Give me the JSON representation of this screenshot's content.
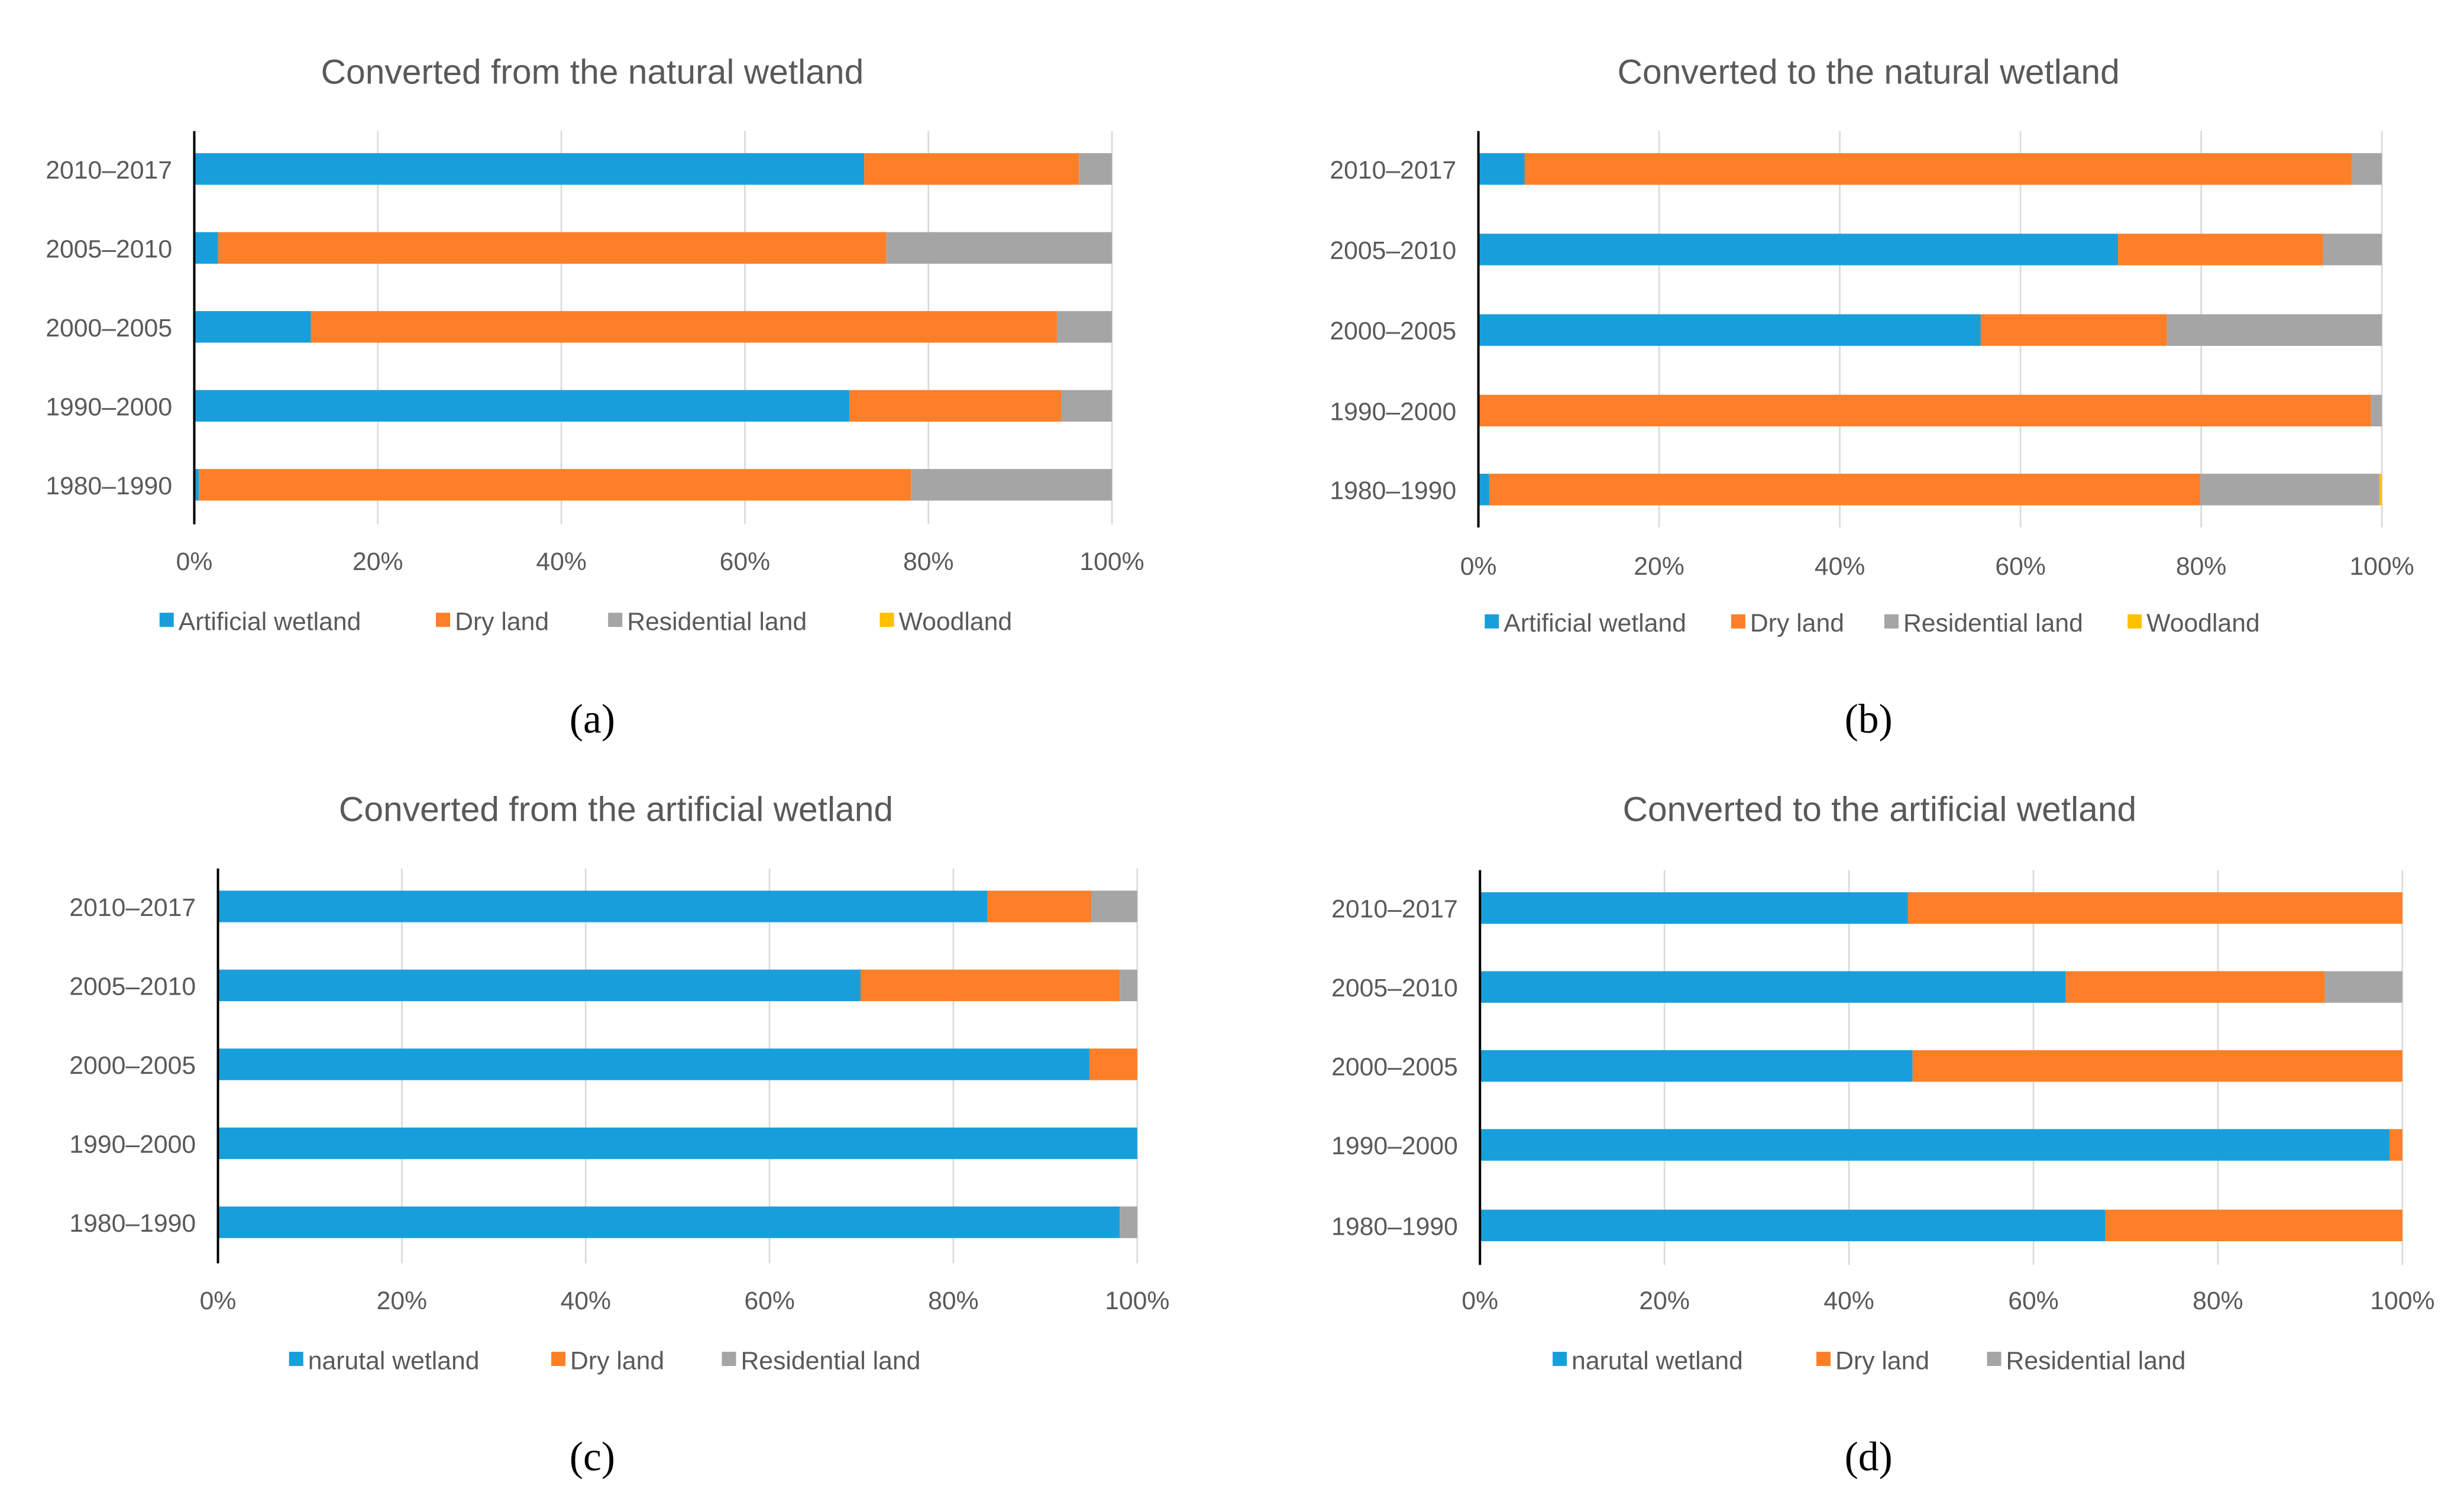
{
  "colors": {
    "blue": "#189fdb",
    "orange": "#fd7f28",
    "gray": "#a5a5a5",
    "yellow": "#ffc000",
    "grid": "#d9d9d9"
  },
  "chart_data": [
    {
      "type": "bar",
      "stacked": true,
      "orientation": "horizontal",
      "percent": true,
      "title": "Converted  from the natural wetland",
      "caption": "(a)",
      "categories": [
        "2010–2017",
        "2005–2010",
        "2000–2005",
        "1990–2000",
        "1980–1990"
      ],
      "xticks": [
        "0%",
        "20%",
        "40%",
        "60%",
        "80%",
        "100%"
      ],
      "xlim": [
        0,
        100
      ],
      "legend_position": "bottom",
      "series": [
        {
          "name": "Artificial wetland",
          "color": "blue",
          "values": [
            73.0,
            2.6,
            12.7,
            71.4,
            0.5
          ]
        },
        {
          "name": "Dry land",
          "color": "orange",
          "values": [
            23.4,
            72.8,
            81.3,
            23.1,
            77.6
          ]
        },
        {
          "name": "Residential land",
          "color": "gray",
          "values": [
            3.6,
            24.6,
            6.0,
            5.5,
            21.9
          ]
        },
        {
          "name": "Woodland",
          "color": "yellow",
          "values": [
            0,
            0,
            0,
            0,
            0
          ]
        }
      ]
    },
    {
      "type": "bar",
      "stacked": true,
      "orientation": "horizontal",
      "percent": true,
      "title": "Converted  to the natural wetland",
      "caption": "(b)",
      "categories": [
        "2010–2017",
        "2005–2010",
        "2000–2005",
        "1990–2000",
        "1980–1990"
      ],
      "xticks": [
        "0%",
        "20%",
        "40%",
        "60%",
        "80%",
        "100%"
      ],
      "xlim": [
        0,
        100
      ],
      "legend_position": "bottom",
      "series": [
        {
          "name": "Artificial wetland",
          "color": "blue",
          "values": [
            5.1,
            70.8,
            55.6,
            0,
            1.2
          ]
        },
        {
          "name": "Dry land",
          "color": "orange",
          "values": [
            91.6,
            22.7,
            20.6,
            98.8,
            78.7
          ]
        },
        {
          "name": "Residential land",
          "color": "gray",
          "values": [
            3.3,
            6.5,
            23.8,
            1.2,
            19.8
          ]
        },
        {
          "name": "Woodland",
          "color": "yellow",
          "values": [
            0,
            0,
            0,
            0,
            0.3
          ]
        }
      ]
    },
    {
      "type": "bar",
      "stacked": true,
      "orientation": "horizontal",
      "percent": true,
      "title": "Converted  from the artificial wetland",
      "caption": "(c)",
      "categories": [
        "2010–2017",
        "2005–2010",
        "2000–2005",
        "1990–2000",
        "1980–1990"
      ],
      "xticks": [
        "0%",
        "20%",
        "40%",
        "60%",
        "80%",
        "100%"
      ],
      "xlim": [
        0,
        100
      ],
      "legend_position": "bottom",
      "series": [
        {
          "name": "narutal wetland",
          "color": "blue",
          "values": [
            83.7,
            69.9,
            94.8,
            100,
            98.1
          ]
        },
        {
          "name": "Dry land",
          "color": "orange",
          "values": [
            11.3,
            28.2,
            5.2,
            0,
            0
          ]
        },
        {
          "name": "Residential land",
          "color": "gray",
          "values": [
            5.0,
            1.9,
            0,
            0,
            1.9
          ]
        }
      ]
    },
    {
      "type": "bar",
      "stacked": true,
      "orientation": "horizontal",
      "percent": true,
      "title": "Converted  to the artificial wetland",
      "caption": "(d)",
      "categories": [
        "2010–2017",
        "2005–2010",
        "2000–2005",
        "1990–2000",
        "1980–1990"
      ],
      "xticks": [
        "0%",
        "20%",
        "40%",
        "60%",
        "80%",
        "100%"
      ],
      "xlim": [
        0,
        100
      ],
      "legend_position": "bottom",
      "series": [
        {
          "name": "narutal wetland",
          "color": "blue",
          "values": [
            46.4,
            63.5,
            46.9,
            98.6,
            67.8
          ]
        },
        {
          "name": "Dry land",
          "color": "orange",
          "values": [
            53.6,
            28.1,
            53.1,
            1.4,
            32.2
          ]
        },
        {
          "name": "Residential land",
          "color": "gray",
          "values": [
            0,
            8.4,
            0,
            0,
            0
          ]
        }
      ]
    }
  ]
}
